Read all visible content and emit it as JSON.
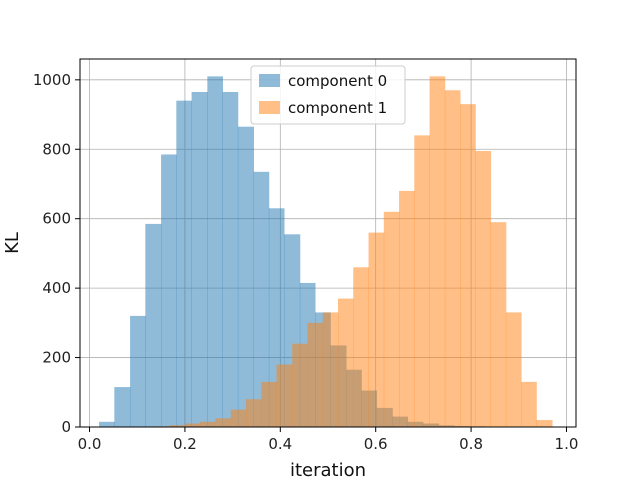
{
  "chart_data": {
    "type": "bar",
    "subtype": "histogram",
    "title": "",
    "xlabel": "iteration",
    "ylabel": "KL",
    "xlim": [
      -0.02,
      1.02
    ],
    "ylim": [
      0,
      1060
    ],
    "xticks": [
      0.0,
      0.2,
      0.4,
      0.6,
      0.8,
      1.0
    ],
    "xtick_labels": [
      "0.0",
      "0.2",
      "0.4",
      "0.6",
      "0.8",
      "1.0"
    ],
    "yticks": [
      0,
      200,
      400,
      600,
      800,
      1000
    ],
    "ytick_labels": [
      "0",
      "200",
      "400",
      "600",
      "800",
      "1000"
    ],
    "grid": true,
    "legend_position": "top-center",
    "series": [
      {
        "name": "component 0",
        "color": "#1f77b4",
        "alpha": 0.5,
        "bin_edges": [
          0.02,
          0.052,
          0.085,
          0.117,
          0.15,
          0.182,
          0.214,
          0.247,
          0.279,
          0.311,
          0.344,
          0.376,
          0.408,
          0.441,
          0.473,
          0.505,
          0.538,
          0.57,
          0.602,
          0.635,
          0.667,
          0.699,
          0.732,
          0.764,
          0.796,
          0.829,
          0.861
        ],
        "counts": [
          15,
          115,
          320,
          585,
          785,
          940,
          965,
          1010,
          965,
          865,
          735,
          630,
          555,
          415,
          330,
          235,
          165,
          105,
          55,
          30,
          15,
          10,
          5,
          3,
          2,
          1
        ]
      },
      {
        "name": "component 1",
        "color": "#ff7f0e",
        "alpha": 0.5,
        "bin_edges": [
          0.136,
          0.168,
          0.2,
          0.232,
          0.264,
          0.296,
          0.328,
          0.36,
          0.392,
          0.425,
          0.457,
          0.489,
          0.521,
          0.553,
          0.585,
          0.617,
          0.649,
          0.681,
          0.713,
          0.745,
          0.777,
          0.809,
          0.841,
          0.873,
          0.905,
          0.937,
          0.97
        ],
        "counts": [
          2,
          5,
          10,
          15,
          25,
          50,
          80,
          130,
          180,
          240,
          300,
          330,
          370,
          460,
          560,
          620,
          680,
          840,
          1010,
          970,
          930,
          795,
          590,
          330,
          130,
          20
        ]
      }
    ]
  }
}
